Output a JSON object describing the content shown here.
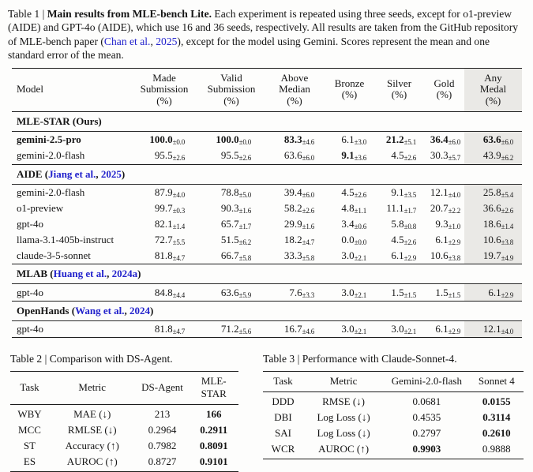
{
  "colors": {
    "link_blue": "#2222cc",
    "highlight_gray": "#eae9e6",
    "text": "#151515"
  },
  "table1": {
    "caption_segments": [
      {
        "t": "Table 1 | ",
        "s": "n"
      },
      {
        "t": "Main results from MLE-bench Lite.",
        "s": "b"
      },
      {
        "t": " Each experiment is repeated using three seeds, except for o1-preview (AIDE) and GPT-4o (AIDE), which use 16 and 36 seeds, respectively. All results are taken from the GitHub repository of MLE-bench paper (",
        "s": "n"
      },
      {
        "t": "Chan et al.",
        "s": "l"
      },
      {
        "t": ", ",
        "s": "n"
      },
      {
        "t": "2025",
        "s": "l"
      },
      {
        "t": "), except for the model using Gemini. Scores represent the mean and one standard error of the mean.",
        "s": "n"
      }
    ],
    "columns": [
      {
        "lines": [
          "Model"
        ],
        "highlight": false
      },
      {
        "lines": [
          "Made",
          "Submission",
          "(%)"
        ],
        "highlight": false
      },
      {
        "lines": [
          "Valid",
          "Submission",
          "(%)"
        ],
        "highlight": false
      },
      {
        "lines": [
          "Above",
          "Median",
          "(%)"
        ],
        "highlight": false
      },
      {
        "lines": [
          "Bronze",
          "(%)"
        ],
        "highlight": false
      },
      {
        "lines": [
          "Silver",
          "(%)"
        ],
        "highlight": false
      },
      {
        "lines": [
          "Gold",
          "(%)"
        ],
        "highlight": false
      },
      {
        "lines": [
          "Any",
          "Medal",
          "(%)"
        ],
        "highlight": true
      }
    ],
    "sections": [
      {
        "title_segments": [
          {
            "t": "MLE-STAR (Ours)",
            "s": "b"
          }
        ],
        "rows": [
          {
            "model": "gemini-2.5-pro",
            "model_bold": true,
            "cells": [
              [
                "100.0",
                "±0.0",
                1
              ],
              [
                "100.0",
                "±0.0",
                1
              ],
              [
                "83.3",
                "±4.6",
                1
              ],
              [
                "6.1",
                "±3.0",
                0
              ],
              [
                "21.2",
                "±5.1",
                1
              ],
              [
                "36.4",
                "±6.0",
                1
              ],
              [
                "63.6",
                "±6.0",
                1
              ]
            ]
          },
          {
            "model": "gemini-2.0-flash",
            "model_bold": false,
            "cells": [
              [
                "95.5",
                "±2.6",
                0
              ],
              [
                "95.5",
                "±2.6",
                0
              ],
              [
                "63.6",
                "±6.0",
                0
              ],
              [
                "9.1",
                "±3.6",
                1
              ],
              [
                "4.5",
                "±2.6",
                0
              ],
              [
                "30.3",
                "±5.7",
                0
              ],
              [
                "43.9",
                "±6.2",
                0
              ]
            ]
          }
        ]
      },
      {
        "title_segments": [
          {
            "t": "AIDE (",
            "s": "b"
          },
          {
            "t": "Jiang et al.",
            "s": "bl"
          },
          {
            "t": ", ",
            "s": "b"
          },
          {
            "t": "2025",
            "s": "bl"
          },
          {
            "t": ")",
            "s": "b"
          }
        ],
        "rows": [
          {
            "model": "gemini-2.0-flash",
            "model_bold": false,
            "cells": [
              [
                "87.9",
                "±4.0",
                0
              ],
              [
                "78.8",
                "±5.0",
                0
              ],
              [
                "39.4",
                "±6.0",
                0
              ],
              [
                "4.5",
                "±2.6",
                0
              ],
              [
                "9.1",
                "±3.5",
                0
              ],
              [
                "12.1",
                "±4.0",
                0
              ],
              [
                "25.8",
                "±5.4",
                0
              ]
            ]
          },
          {
            "model": "o1-preview",
            "model_bold": false,
            "cells": [
              [
                "99.7",
                "±0.3",
                0
              ],
              [
                "90.3",
                "±1.6",
                0
              ],
              [
                "58.2",
                "±2.6",
                0
              ],
              [
                "4.8",
                "±1.1",
                0
              ],
              [
                "11.1",
                "±1.7",
                0
              ],
              [
                "20.7",
                "±2.2",
                0
              ],
              [
                "36.6",
                "±2.6",
                0
              ]
            ]
          },
          {
            "model": "gpt-4o",
            "model_bold": false,
            "cells": [
              [
                "82.1",
                "±1.4",
                0
              ],
              [
                "65.7",
                "±1.7",
                0
              ],
              [
                "29.9",
                "±1.6",
                0
              ],
              [
                "3.4",
                "±0.6",
                0
              ],
              [
                "5.8",
                "±0.8",
                0
              ],
              [
                "9.3",
                "±1.0",
                0
              ],
              [
                "18.6",
                "±1.4",
                0
              ]
            ]
          },
          {
            "model": "llama-3.1-405b-instruct",
            "model_bold": false,
            "cells": [
              [
                "72.7",
                "±5.5",
                0
              ],
              [
                "51.5",
                "±6.2",
                0
              ],
              [
                "18.2",
                "±4.7",
                0
              ],
              [
                "0.0",
                "±0.0",
                0
              ],
              [
                "4.5",
                "±2.6",
                0
              ],
              [
                "6.1",
                "±2.9",
                0
              ],
              [
                "10.6",
                "±3.8",
                0
              ]
            ]
          },
          {
            "model": "claude-3-5-sonnet",
            "model_bold": false,
            "cells": [
              [
                "81.8",
                "±4.7",
                0
              ],
              [
                "66.7",
                "±5.8",
                0
              ],
              [
                "33.3",
                "±5.8",
                0
              ],
              [
                "3.0",
                "±2.1",
                0
              ],
              [
                "6.1",
                "±2.9",
                0
              ],
              [
                "10.6",
                "±3.8",
                0
              ],
              [
                "19.7",
                "±4.9",
                0
              ]
            ]
          }
        ]
      },
      {
        "title_segments": [
          {
            "t": "MLAB (",
            "s": "b"
          },
          {
            "t": "Huang et al.",
            "s": "bl"
          },
          {
            "t": ", ",
            "s": "b"
          },
          {
            "t": "2024a",
            "s": "bl"
          },
          {
            "t": ")",
            "s": "b"
          }
        ],
        "rows": [
          {
            "model": "gpt-4o",
            "model_bold": false,
            "cells": [
              [
                "84.8",
                "±4.4",
                0
              ],
              [
                "63.6",
                "±5.9",
                0
              ],
              [
                "7.6",
                "±3.3",
                0
              ],
              [
                "3.0",
                "±2.1",
                0
              ],
              [
                "1.5",
                "±1.5",
                0
              ],
              [
                "1.5",
                "±1.5",
                0
              ],
              [
                "6.1",
                "±2.9",
                0
              ]
            ]
          }
        ]
      },
      {
        "title_segments": [
          {
            "t": "OpenHands (",
            "s": "b"
          },
          {
            "t": "Wang et al.",
            "s": "bl"
          },
          {
            "t": ", ",
            "s": "b"
          },
          {
            "t": "2024",
            "s": "bl"
          },
          {
            "t": ")",
            "s": "b"
          }
        ],
        "rows": [
          {
            "model": "gpt-4o",
            "model_bold": false,
            "cells": [
              [
                "81.8",
                "±4.7",
                0
              ],
              [
                "71.2",
                "±5.6",
                0
              ],
              [
                "16.7",
                "±4.6",
                0
              ],
              [
                "3.0",
                "±2.1",
                0
              ],
              [
                "3.0",
                "±2.1",
                0
              ],
              [
                "6.1",
                "±2.9",
                0
              ],
              [
                "12.1",
                "±4.0",
                0
              ]
            ]
          }
        ]
      }
    ]
  },
  "table2": {
    "caption": "Table 2 | Comparison with DS-Agent.",
    "columns": [
      {
        "t": "Task",
        "b": 0
      },
      {
        "t": "Metric",
        "b": 0
      },
      {
        "t": "DS-Agent",
        "b": 0
      },
      {
        "t": "MLE-STAR",
        "b": 1
      }
    ],
    "rows": [
      [
        {
          "t": "WBY",
          "b": 0
        },
        {
          "t": "MAE (↓)",
          "b": 0
        },
        {
          "t": "213",
          "b": 0
        },
        {
          "t": "166",
          "b": 1
        }
      ],
      [
        {
          "t": "MCC",
          "b": 0
        },
        {
          "t": "RMLSE (↓)",
          "b": 0
        },
        {
          "t": "0.2964",
          "b": 0
        },
        {
          "t": "0.2911",
          "b": 1
        }
      ],
      [
        {
          "t": "ST",
          "b": 0
        },
        {
          "t": "Accuracy (↑)",
          "b": 0
        },
        {
          "t": "0.7982",
          "b": 0
        },
        {
          "t": "0.8091",
          "b": 1
        }
      ],
      [
        {
          "t": "ES",
          "b": 0
        },
        {
          "t": "AUROC (↑)",
          "b": 0
        },
        {
          "t": "0.8727",
          "b": 0
        },
        {
          "t": "0.9101",
          "b": 1
        }
      ]
    ]
  },
  "table3": {
    "caption": "Table 3 | Performance with Claude-Sonnet-4.",
    "columns": [
      {
        "t": "Task",
        "b": 0
      },
      {
        "t": "Metric",
        "b": 0
      },
      {
        "t": "Gemini-2.0-flash",
        "b": 0
      },
      {
        "t": "Sonnet 4",
        "b": 1
      }
    ],
    "rows": [
      [
        {
          "t": "DDD",
          "b": 0
        },
        {
          "t": "RMSE (↓)",
          "b": 0
        },
        {
          "t": "0.0681",
          "b": 0
        },
        {
          "t": "0.0155",
          "b": 1
        }
      ],
      [
        {
          "t": "DBI",
          "b": 0
        },
        {
          "t": "Log Loss (↓)",
          "b": 0
        },
        {
          "t": "0.4535",
          "b": 0
        },
        {
          "t": "0.3114",
          "b": 1
        }
      ],
      [
        {
          "t": "SAI",
          "b": 0
        },
        {
          "t": "Log Loss (↓)",
          "b": 0
        },
        {
          "t": "0.2797",
          "b": 0
        },
        {
          "t": "0.2610",
          "b": 1
        }
      ],
      [
        {
          "t": "WCR",
          "b": 0
        },
        {
          "t": "AUROC (↑)",
          "b": 0
        },
        {
          "t": "0.9903",
          "b": 1
        },
        {
          "t": "0.9888",
          "b": 0
        }
      ]
    ]
  }
}
